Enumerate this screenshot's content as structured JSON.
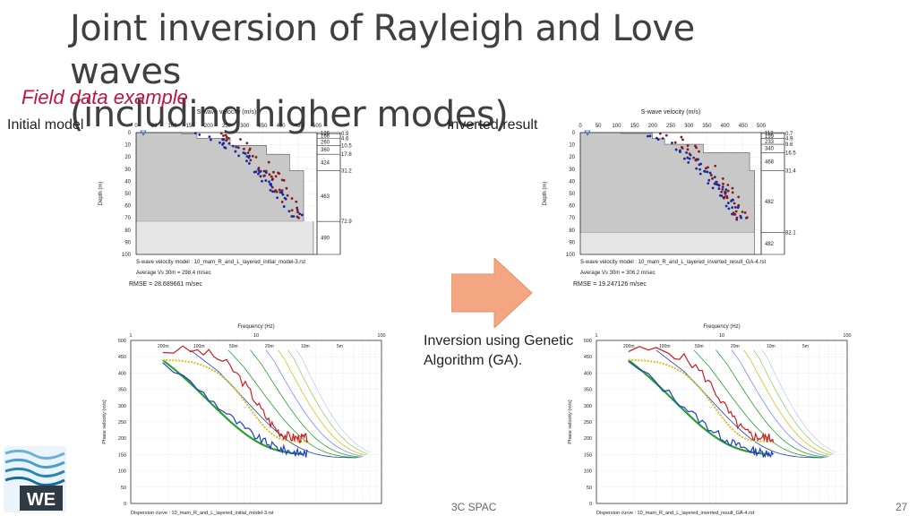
{
  "slide": {
    "title_line1": "Joint inversion of Rayleigh and Love waves",
    "title_line2": "(including higher modes)",
    "subtitle": "Field data example",
    "initial_label": "Initial model",
    "inverted_label": "Inverted result",
    "caption_line1": "Inversion using Genetic",
    "caption_line2": "Algorithm (GA).",
    "footer_center": "3C SPAC",
    "page_number": "27",
    "logo_text": "WE"
  },
  "vs_panels": {
    "axis_title": "S-wave velocity (m/s)",
    "depth_label": "Depth (m)",
    "x_ticks": [
      "0",
      "50",
      "100",
      "150",
      "200",
      "250",
      "300",
      "350",
      "400",
      "450",
      "500"
    ],
    "y_ticks": [
      "0",
      "10",
      "20",
      "30",
      "40",
      "50",
      "60",
      "70",
      "80",
      "90",
      "100"
    ],
    "initial": {
      "model_line": "S-wave velocity model  :  10_mam_R_and_L_layered_initial_model-3.rst",
      "avg_line": "Average Vs 30m  =  298.4 m/sec",
      "rmse": "RMSE = 28.689661 m/sec",
      "layer_depths": [
        "0.9",
        "4.6",
        "10.5",
        "17.8",
        "31.2",
        "72.9"
      ],
      "layer_vs": [
        "126",
        "168",
        "260",
        "360",
        "424",
        "463",
        "490"
      ]
    },
    "inverted": {
      "model_line": "S-wave velocity model  :  10_mam_R_and_L_layered_inverted_result_GA-4.rst",
      "avg_line": "Average Vs 30m  =  306.2 m/sec",
      "rmse": "RMSE = 19.247126 m/sec",
      "layer_depths": [
        "0.7",
        "4.9",
        "9.6",
        "16.5",
        "31.4",
        "82.1"
      ],
      "layer_vs": [
        "112",
        "199",
        "233",
        "340",
        "468",
        "482",
        "482"
      ]
    }
  },
  "dispersion_panels": {
    "axis_title": "Frequency (Hz)",
    "velocity_label": "Phase velocity (m/s)",
    "x_ticks": [
      "1",
      "10",
      "100"
    ],
    "y_ticks": [
      "0",
      "50",
      "100",
      "150",
      "200",
      "250",
      "300",
      "350",
      "400",
      "450",
      "500"
    ],
    "wavelength_labels": [
      "200m",
      "100m",
      "50m",
      "20m",
      "10m",
      "5m"
    ],
    "initial_file": "Dispersion curve : 10_mam_R_and_L_layered_initial_model-3.rst",
    "inverted_file": "Dispersion curve : 10_mam_R_and_L_layered_inverted_result_GA-4.rst"
  },
  "colors": {
    "title": "#404040",
    "subtitle": "#c0143c",
    "arrow": "#f4a582",
    "model_fill": "#c8c8c8",
    "halfspace_fill": "#e6e6e6",
    "obs_blue": "#1a2a9c",
    "obs_red": "#8b1a1a",
    "rayleigh": "#c81e1e",
    "love": "#1e3cc8",
    "theory_green": "#2aa02a",
    "theory_yellow": "#d8c020"
  }
}
